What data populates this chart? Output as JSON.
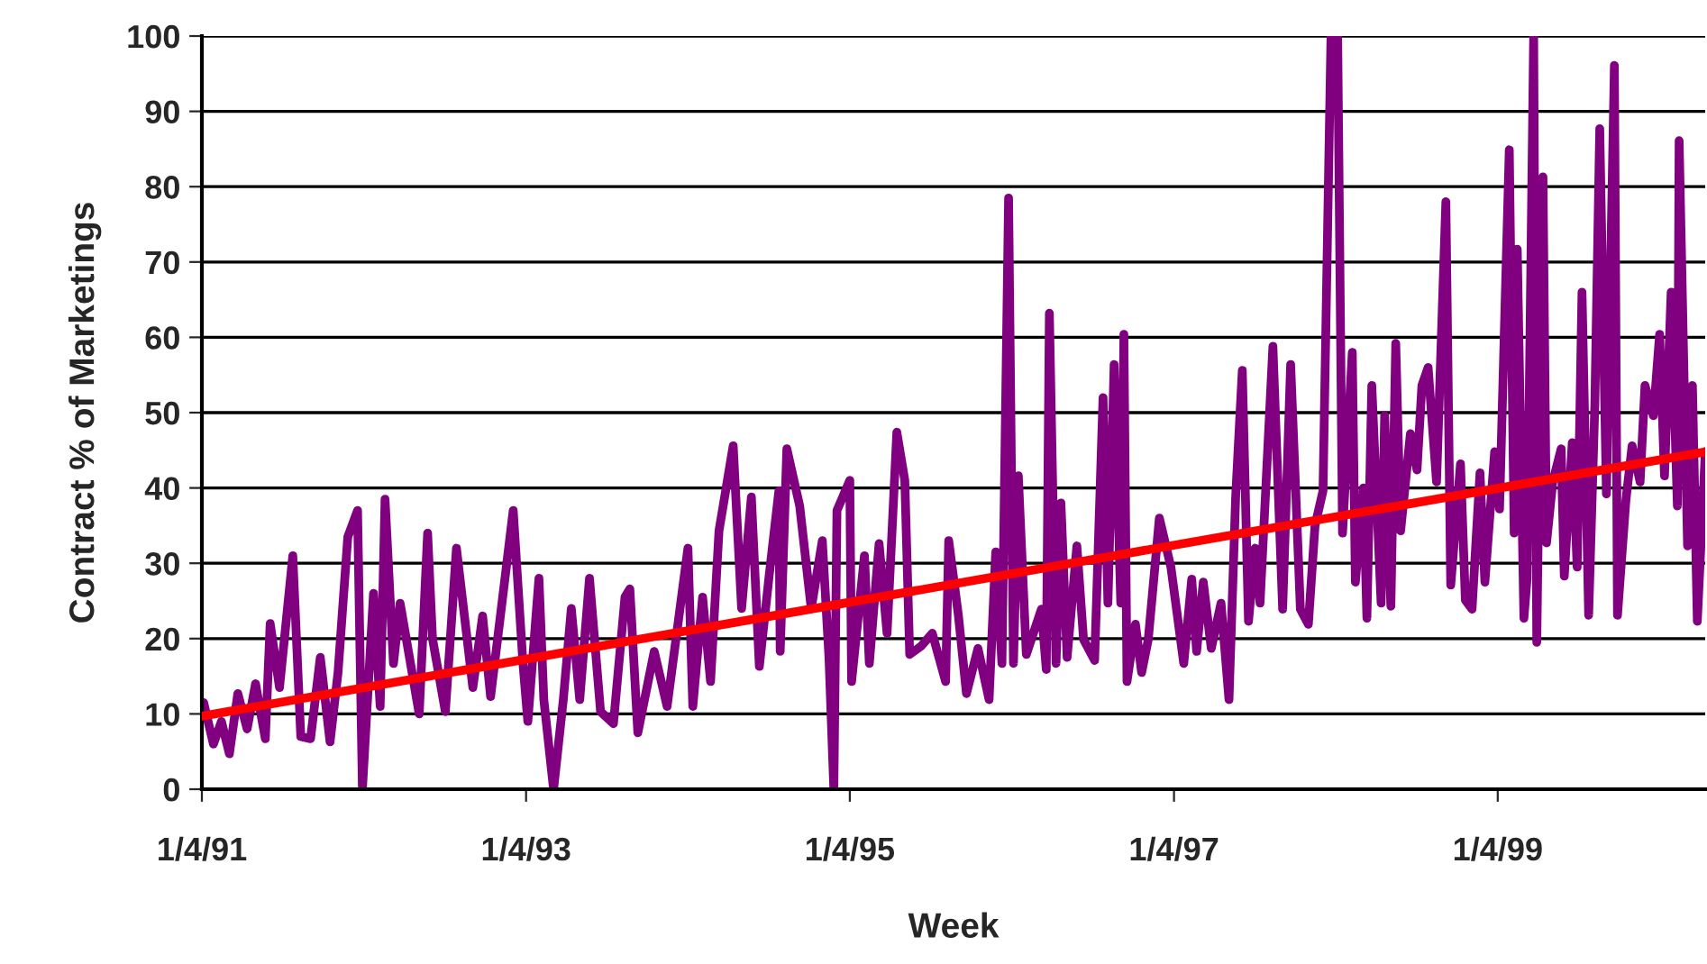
{
  "chart_data": {
    "type": "line",
    "xlabel": "Week",
    "ylabel": "Contract % of Marketings",
    "xlim": [
      "1991-01-04",
      "2000-04-16"
    ],
    "ylim": [
      0,
      100
    ],
    "xticks": [
      {
        "value": "1991-01-04",
        "label": "1/4/91"
      },
      {
        "value": "1993-01-04",
        "label": "1/4/93"
      },
      {
        "value": "1995-01-04",
        "label": "1/4/95"
      },
      {
        "value": "1997-01-04",
        "label": "1/4/97"
      },
      {
        "value": "1999-01-04",
        "label": "1/4/99"
      }
    ],
    "yticks": [
      0,
      10,
      20,
      30,
      40,
      50,
      60,
      70,
      80,
      90,
      100
    ],
    "grid": "y",
    "legend": false,
    "marker": "none",
    "line_style": "solid",
    "series": [
      {
        "color": "#800080",
        "x": [
          "1991-01-08",
          "1991-01-30",
          "1991-02-17",
          "1991-03-07",
          "1991-03-26",
          "1991-04-16",
          "1991-05-05",
          "1991-05-27",
          "1991-06-07",
          "1991-06-28",
          "1991-07-28",
          "1991-08-15",
          "1991-09-06",
          "1991-09-28",
          "1991-10-20",
          "1991-11-07",
          "1991-11-29",
          "1991-12-21",
          "1992-01-01",
          "1992-01-26",
          "1992-02-10",
          "1992-02-21",
          "1992-03-11",
          "1992-03-26",
          "1992-05-08",
          "1992-05-27",
          "1992-06-07",
          "1992-07-06",
          "1992-07-31",
          "1992-09-06",
          "1992-09-28",
          "1992-10-16",
          "1992-12-06",
          "1992-12-28",
          "1993-01-08",
          "1993-02-02",
          "1993-02-13",
          "1993-03-07",
          "1993-03-29",
          "1993-04-16",
          "1993-05-05",
          "1993-05-27",
          "1993-06-21",
          "1993-07-20",
          "1993-08-15",
          "1993-08-26",
          "1993-09-13",
          "1993-10-20",
          "1993-11-18",
          "1994-01-04",
          "1994-01-15",
          "1994-02-06",
          "1994-02-24",
          "1994-03-15",
          "1994-04-16",
          "1994-05-05",
          "1994-05-27",
          "1994-06-14",
          "1994-07-06",
          "1994-07-28",
          "1994-07-31",
          "1994-08-15",
          "1994-09-13",
          "1994-10-09",
          "1994-11-03",
          "1994-11-18",
          "1994-11-29",
          "1994-12-06",
          "1995-01-04",
          "1995-01-08",
          "1995-02-06",
          "1995-02-17",
          "1995-03-11",
          "1995-03-29",
          "1995-04-20",
          "1995-05-08",
          "1995-05-19",
          "1995-06-14",
          "1995-07-09",
          "1995-08-08",
          "1995-08-15",
          "1995-09-06",
          "1995-09-24",
          "1995-10-20",
          "1995-11-14",
          "1995-11-29",
          "1995-12-13",
          "1995-12-28",
          "1996-01-08",
          "1996-01-19",
          "1996-02-06",
          "1996-03-11",
          "1996-03-22",
          "1996-03-29",
          "1996-04-13",
          "1996-04-24",
          "1996-05-08",
          "1996-05-30",
          "1996-06-14",
          "1996-07-09",
          "1996-07-28",
          "1996-08-08",
          "1996-08-22",
          "1996-09-06",
          "1996-09-13",
          "1996-09-20",
          "1996-10-09",
          "1996-10-23",
          "1996-11-07",
          "1996-12-02",
          "1996-12-28",
          "1997-01-26",
          "1997-02-13",
          "1997-02-24",
          "1997-03-11",
          "1997-03-29",
          "1997-04-20",
          "1997-05-08",
          "1997-05-23",
          "1997-06-07",
          "1997-06-21",
          "1997-07-06",
          "1997-07-17",
          "1997-08-15",
          "1997-09-06",
          "1997-09-24",
          "1997-10-16",
          "1997-11-03",
          "1997-11-18",
          "1997-12-06",
          "1997-12-24",
          "1998-01-08",
          "1998-01-19",
          "1998-02-10",
          "1998-02-17",
          "1998-03-07",
          "1998-03-15",
          "1998-03-26",
          "1998-04-16",
          "1998-04-24",
          "1998-05-08",
          "1998-05-19",
          "1998-05-30",
          "1998-06-21",
          "1998-07-06",
          "1998-07-17",
          "1998-07-31",
          "1998-08-19",
          "1998-09-09",
          "1998-09-20",
          "1998-10-12",
          "1998-10-23",
          "1998-11-07",
          "1998-11-25",
          "1998-12-06",
          "1998-12-28",
          "1999-01-08",
          "1999-01-30",
          "1999-02-10",
          "1999-02-17",
          "1999-03-04",
          "1999-03-11",
          "1999-03-26",
          "1999-04-02",
          "1999-04-16",
          "1999-04-24",
          "1999-05-08",
          "1999-05-27",
          "1999-06-03",
          "1999-06-21",
          "1999-07-02",
          "1999-07-13",
          "1999-07-28",
          "1999-08-11",
          "1999-08-22",
          "1999-09-06",
          "1999-09-24",
          "1999-10-01",
          "1999-10-20",
          "1999-11-03",
          "1999-11-21",
          "1999-12-02",
          "1999-12-21",
          "2000-01-04",
          "2000-01-15",
          "2000-01-30",
          "2000-02-13",
          "2000-02-17",
          "2000-03-07",
          "2000-03-18",
          "2000-03-29",
          "2000-04-16"
        ],
        "values": [
          11.5,
          6,
          9,
          4.7,
          12.7,
          8,
          14,
          6.7,
          22,
          13.5,
          31,
          7,
          6.7,
          17.5,
          6.3,
          15.5,
          33.5,
          37,
          0,
          26,
          11,
          38.5,
          16.7,
          24.7,
          10,
          34,
          20,
          10.3,
          32,
          13.5,
          23,
          12.3,
          37,
          16.7,
          9,
          28,
          11.9,
          0,
          11.9,
          24,
          11.9,
          28,
          10.3,
          8.7,
          25.5,
          26.6,
          7.5,
          18.3,
          11,
          32,
          11,
          25.5,
          14.3,
          34.3,
          45.6,
          24,
          38.8,
          16.3,
          28.3,
          39.6,
          18.3,
          45.2,
          37.6,
          24,
          33,
          17.5,
          0,
          37,
          41,
          14.3,
          31,
          16.7,
          32.6,
          20.7,
          47.4,
          41,
          17.9,
          19,
          20.7,
          14.3,
          33,
          23,
          12.7,
          18.7,
          11.9,
          31.5,
          16.7,
          78.5,
          16.7,
          41.6,
          17.9,
          23.9,
          15.9,
          63.2,
          16.7,
          38,
          17.5,
          32.3,
          19.9,
          17.1,
          52,
          24.7,
          56.4,
          24.7,
          60.4,
          14.3,
          21.9,
          15.5,
          19.9,
          36,
          29.5,
          16.7,
          27.9,
          18.3,
          27.5,
          18.7,
          24.7,
          11.9,
          38.8,
          55.6,
          22.3,
          32,
          24.7,
          58.8,
          23.9,
          56.4,
          23.9,
          21.9,
          35,
          39.6,
          100,
          100,
          34,
          58,
          27.5,
          40,
          22.7,
          53.6,
          24.7,
          49.6,
          24.3,
          59.2,
          34.3,
          47.2,
          42.4,
          53.6,
          56,
          40.8,
          78,
          27.1,
          43.2,
          25.1,
          23.9,
          42,
          27.5,
          44.8,
          37.2,
          84.9,
          34,
          71.7,
          22.7,
          27.9,
          100,
          19.5,
          81.3,
          32.7,
          40.8,
          45.2,
          28.3,
          46,
          29.5,
          66,
          23.1,
          51.2,
          87.7,
          39.2,
          96.1,
          23.1,
          38.4,
          45.6,
          40.8,
          53.6,
          49.6,
          60.4,
          41.6,
          66,
          37.6,
          86.1,
          32.3,
          53.6,
          22.3,
          44.8
        ]
      },
      {
        "type": "line",
        "color": "#ff0000",
        "x": [
          "1991-01-04",
          "2000-04-16"
        ],
        "values": [
          9.7,
          44.8
        ]
      }
    ]
  }
}
